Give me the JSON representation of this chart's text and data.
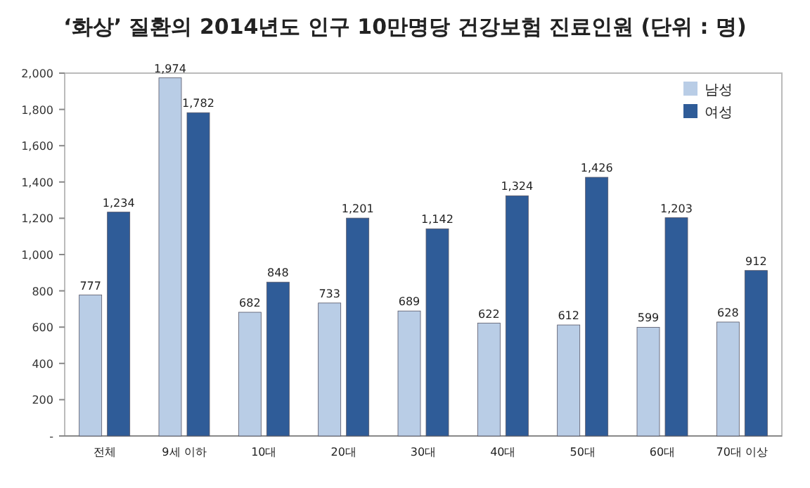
{
  "chart_data": {
    "type": "bar",
    "title": "‘화상’ 질환의 2014년도 인구 10만명당 건강보험 진료인원 (단위 : 명)",
    "categories": [
      "전체",
      "9세 이하",
      "10대",
      "20대",
      "30대",
      "40대",
      "50대",
      "60대",
      "70대 이상"
    ],
    "series": [
      {
        "name": "남성",
        "color": "#b9cde6",
        "values": [
          777,
          1974,
          682,
          733,
          689,
          622,
          612,
          599,
          628
        ],
        "value_labels": [
          "777",
          "1,974",
          "682",
          "733",
          "689",
          "622",
          "612",
          "599",
          "628"
        ]
      },
      {
        "name": "여성",
        "color": "#2f5c98",
        "values": [
          1234,
          1782,
          848,
          1201,
          1142,
          1324,
          1426,
          1203,
          912
        ],
        "value_labels": [
          "1,234",
          "1,782",
          "848",
          "1,201",
          "1,142",
          "1,324",
          "1,426",
          "1,203",
          "912"
        ]
      }
    ],
    "ylim": [
      0,
      2000
    ],
    "yticks": [
      {
        "value": 0,
        "label": "-"
      },
      {
        "value": 200,
        "label": "200"
      },
      {
        "value": 400,
        "label": "400"
      },
      {
        "value": 600,
        "label": "600"
      },
      {
        "value": 800,
        "label": "800"
      },
      {
        "value": 1000,
        "label": "1,000"
      },
      {
        "value": 1200,
        "label": "1,200"
      },
      {
        "value": 1400,
        "label": "1,400"
      },
      {
        "value": 1600,
        "label": "1,600"
      },
      {
        "value": 1800,
        "label": "1,800"
      },
      {
        "value": 2000,
        "label": "2,000"
      }
    ],
    "legend": "top right"
  }
}
